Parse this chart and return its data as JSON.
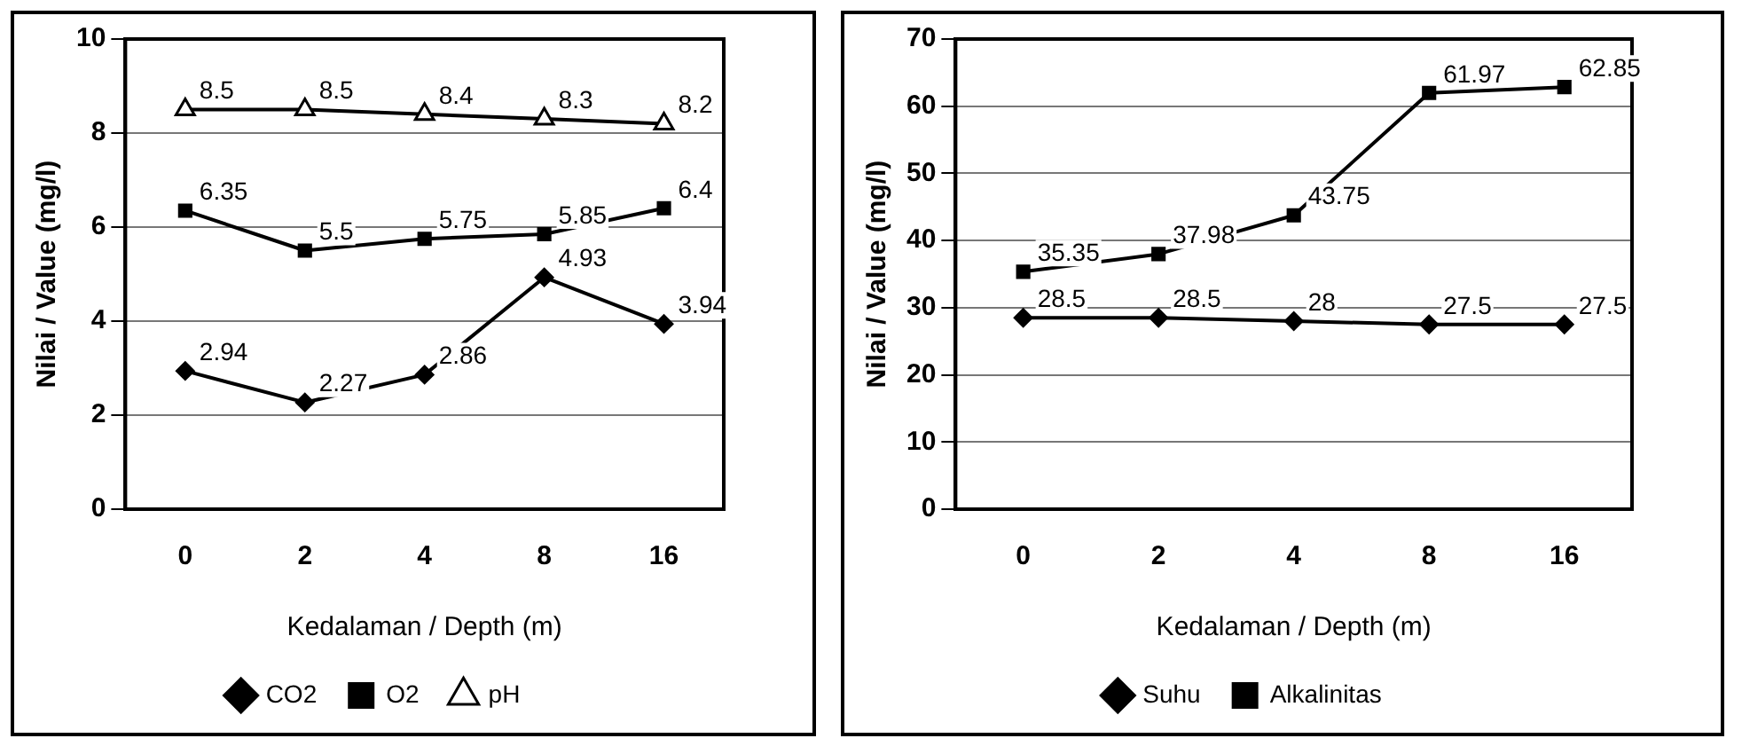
{
  "chart_data": [
    {
      "type": "line",
      "xlabel": "Kedalaman / Depth (m)",
      "ylabel": "Nilai / Value (mg/l)",
      "categories": [
        "0",
        "2",
        "4",
        "8",
        "16"
      ],
      "ylim": [
        0,
        10
      ],
      "yticks": [
        0,
        2,
        4,
        6,
        8,
        10
      ],
      "grid": "y",
      "legend": "bottom",
      "data_labels": true,
      "series": [
        {
          "name": "CO2",
          "color": "#000000",
          "marker": "diamond",
          "values": [
            2.94,
            2.27,
            2.86,
            4.93,
            3.94
          ]
        },
        {
          "name": "O2",
          "color": "#000000",
          "marker": "square",
          "values": [
            6.35,
            5.5,
            5.75,
            5.85,
            6.4
          ]
        },
        {
          "name": "pH",
          "color": "#000000",
          "marker": "triangle",
          "values": [
            8.5,
            8.5,
            8.4,
            8.3,
            8.2
          ]
        }
      ]
    },
    {
      "type": "line",
      "xlabel": "Kedalaman / Depth (m)",
      "ylabel": "Nilai / Value (mg/l)",
      "categories": [
        "0",
        "2",
        "4",
        "8",
        "16"
      ],
      "ylim": [
        0,
        70
      ],
      "yticks": [
        0,
        10,
        20,
        30,
        40,
        50,
        60,
        70
      ],
      "grid": "y",
      "legend": "bottom",
      "data_labels": true,
      "series": [
        {
          "name": "Suhu",
          "color": "#000000",
          "marker": "diamond",
          "values": [
            28.5,
            28.5,
            28,
            27.5,
            27.5
          ]
        },
        {
          "name": "Alkalinitas",
          "color": "#000000",
          "marker": "square",
          "values": [
            35.35,
            37.98,
            43.75,
            61.97,
            62.85
          ]
        }
      ]
    }
  ]
}
